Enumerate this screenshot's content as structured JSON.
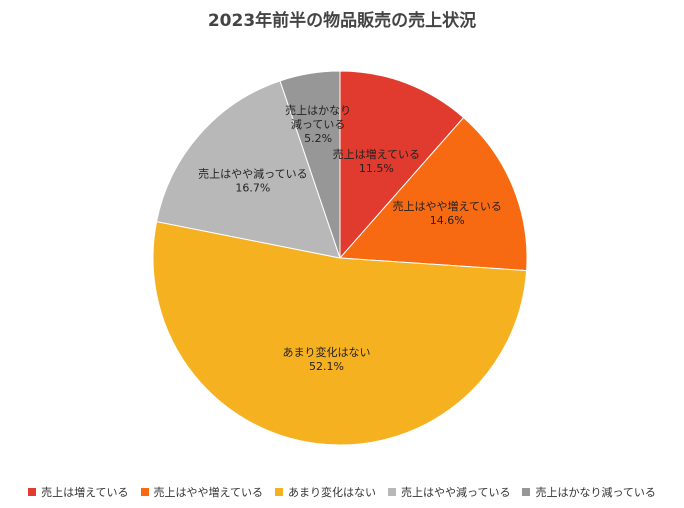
{
  "chart_data": {
    "type": "pie",
    "title": "2023年前半の物品販売の売上状況",
    "categories": [
      "売上は増えている",
      "売上はやや増えている",
      "あまり変化はない",
      "売上はやや減っている",
      "売上はかなり減っている"
    ],
    "values": [
      11.5,
      14.6,
      52.1,
      16.7,
      5.2
    ],
    "value_labels": [
      "11.5%",
      "14.6%",
      "52.1%",
      "16.7%",
      "5.2%"
    ],
    "slice_labels": [
      [
        "売上は増えている"
      ],
      [
        "売上はやや増えている"
      ],
      [
        "あまり変化はない"
      ],
      [
        "売上はやや減っている"
      ],
      [
        "売上はかなり",
        "減っている"
      ]
    ],
    "colors": [
      "#e03b2e",
      "#f76a12",
      "#f6b121",
      "#b8b8b8",
      "#979797"
    ],
    "start": "12 o'clock",
    "direction": "clockwise",
    "legend_position": "bottom"
  }
}
